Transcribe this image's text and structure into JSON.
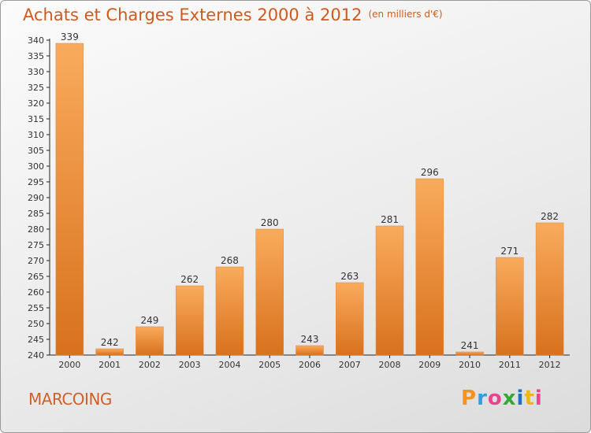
{
  "header": {
    "title": "Achats et Charges Externes 2000 à 2012",
    "unit": "(en milliers d'€)"
  },
  "footer": {
    "commune": "MARCOING",
    "logo_text": "Proxiti",
    "logo_colors": [
      "#f29222",
      "#2aa1d9",
      "#e9458c",
      "#3aa63a",
      "#1f6fc2",
      "#f0b51a",
      "#e9458c"
    ]
  },
  "colors": {
    "bar_light": "#f9ab5c",
    "bar_dark": "#d8711d",
    "title": "#d05a1e",
    "axis": "#222222"
  },
  "chart_data": {
    "type": "bar",
    "title": "Achats et Charges Externes 2000 à 2012",
    "subtitle": "(en milliers d'€)",
    "categories": [
      "2000",
      "2001",
      "2002",
      "2003",
      "2004",
      "2005",
      "2006",
      "2007",
      "2008",
      "2009",
      "2010",
      "2011",
      "2012"
    ],
    "values": [
      339,
      242,
      249,
      262,
      268,
      280,
      243,
      263,
      281,
      296,
      241,
      271,
      282
    ],
    "ylim": [
      240,
      340
    ],
    "ytick_step": 5,
    "grid": false,
    "legend": "none"
  }
}
